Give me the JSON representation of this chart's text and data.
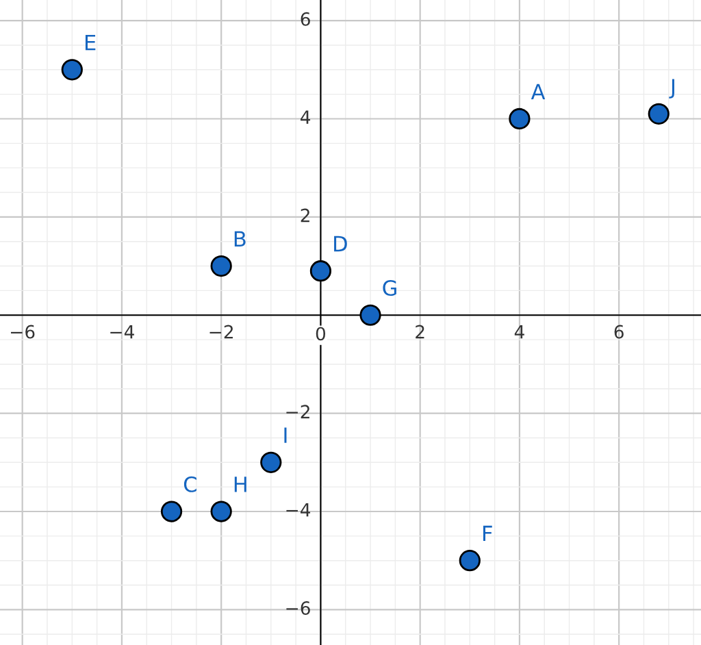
{
  "chart_data": {
    "type": "scatter",
    "x": [
      4,
      -2,
      -3,
      0,
      -5,
      3,
      1,
      -2,
      -1,
      6.8
    ],
    "values": [
      4,
      1,
      -4,
      0.9,
      5,
      -5,
      0,
      -4,
      -3,
      4.1
    ],
    "color": "#1565c0",
    "marker": "circle",
    "grid": true,
    "xlim": [
      -6.45,
      7.65
    ],
    "ylim": [
      -6.72,
      6.42
    ],
    "xticks": [
      {
        "value": -6,
        "label": "−6"
      },
      {
        "value": -4,
        "label": "−4"
      },
      {
        "value": -2,
        "label": "−2"
      },
      0,
      2,
      4,
      6
    ],
    "yticks": [
      {
        "value": -6,
        "label": "−6"
      },
      {
        "value": -4,
        "label": "−4"
      },
      {
        "value": -2,
        "label": "−2"
      },
      2,
      4,
      6
    ],
    "annotations": [
      {
        "text": "A",
        "x": 4,
        "y": 4
      },
      {
        "text": "B",
        "x": -2,
        "y": 1
      },
      {
        "text": "C",
        "x": -3,
        "y": -4
      },
      {
        "text": "D",
        "x": 0,
        "y": 0.9
      },
      {
        "text": "E",
        "x": -5,
        "y": 5
      },
      {
        "text": "F",
        "x": 3,
        "y": -5
      },
      {
        "text": "G",
        "x": 1,
        "y": 0
      },
      {
        "text": "H",
        "x": -2,
        "y": -4
      },
      {
        "text": "I",
        "x": -1,
        "y": -3
      },
      {
        "text": "J",
        "x": 6.8,
        "y": 4.1
      }
    ]
  }
}
